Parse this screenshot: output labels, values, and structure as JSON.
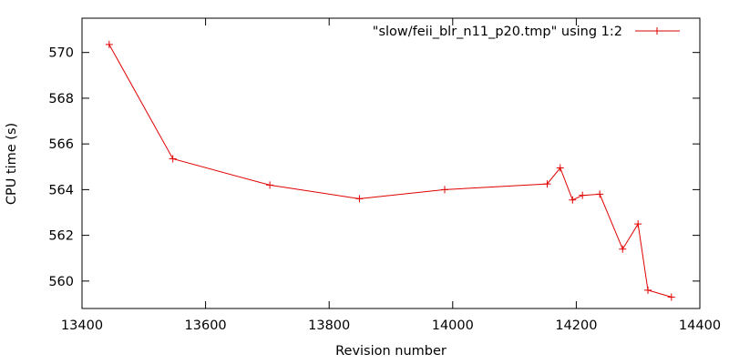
{
  "chart_data": {
    "type": "line",
    "title": "",
    "xlabel": "Revision number",
    "ylabel": "CPU time (s)",
    "xlim": [
      13400,
      14400
    ],
    "ylim": [
      558.8,
      571.5
    ],
    "xticks": [
      13400,
      13600,
      13800,
      14000,
      14200,
      14400
    ],
    "yticks": [
      560,
      562,
      564,
      566,
      568,
      570
    ],
    "grid": false,
    "legend_position": "top-right",
    "series": [
      {
        "name": "\"slow/feii_blr_n11_p20.tmp\" using 1:2",
        "color": "#e00000",
        "marker": "plus",
        "x": [
          13444,
          13547,
          13704,
          13849,
          13987,
          14153,
          14174,
          14194,
          14210,
          14238,
          14275,
          14300,
          14316,
          14354
        ],
        "y": [
          570.35,
          565.35,
          564.2,
          563.6,
          564.0,
          564.25,
          564.95,
          563.55,
          563.75,
          563.8,
          561.4,
          562.5,
          559.6,
          559.3
        ]
      }
    ]
  }
}
